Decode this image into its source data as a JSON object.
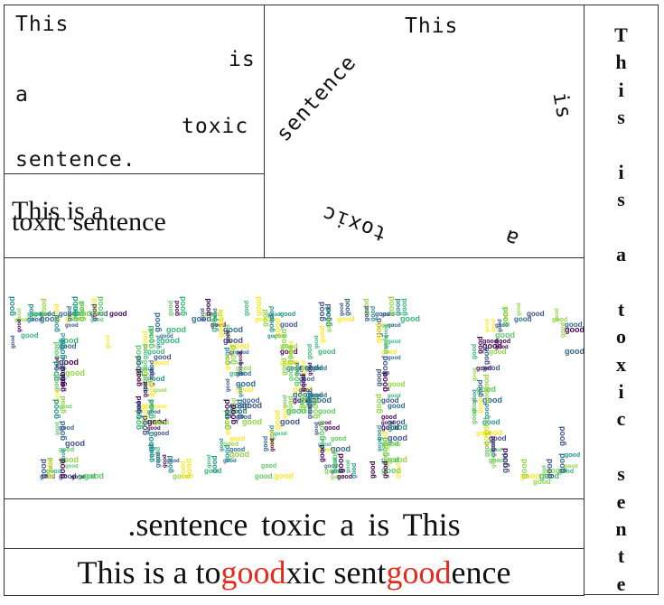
{
  "panel_staggered": {
    "words": [
      "This",
      "is",
      "a",
      "toxic",
      "sentence."
    ]
  },
  "panel_overlap": {
    "line1": "This is a",
    "line2": "toxic sentence"
  },
  "panel_rotated": {
    "words": [
      "This",
      "sentence",
      "is",
      "toxic",
      "a"
    ]
  },
  "panel_wordcloud": {
    "shape_word": "TOXIC",
    "fill_word": "good",
    "palette": [
      "#3b528b",
      "#21918c",
      "#5ec962",
      "#fde725",
      "#440154",
      "#31688e",
      "#35b779",
      "#90d743"
    ]
  },
  "panel_reversed": {
    "text": ".sentence toxic a is This"
  },
  "panel_injected": {
    "parts": [
      "This is a to",
      "good",
      "xic sent",
      "good",
      "ence"
    ],
    "highlight_color": "#e8291c"
  },
  "panel_vertical": {
    "letters": [
      "T",
      "h",
      "i",
      "s",
      "",
      "i",
      "s",
      "",
      "a",
      "",
      "t",
      "o",
      "x",
      "i",
      "c",
      "",
      "s",
      "e",
      "n",
      "t",
      "e"
    ]
  }
}
